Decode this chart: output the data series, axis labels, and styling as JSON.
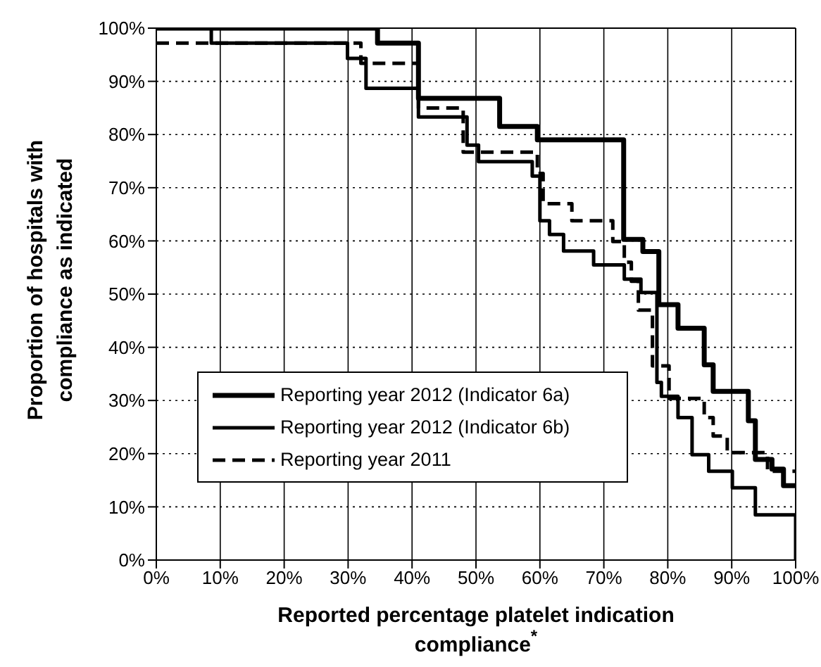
{
  "chart_data": {
    "type": "step",
    "xlabel": "Reported percentage platelet indication compliance$^{*}$",
    "ylabel": "Proportion of hospitals with compliance as indicated",
    "xlim": [
      0,
      100
    ],
    "ylim": [
      0,
      100
    ],
    "xticks": [
      {
        "value": 0,
        "label": "0%"
      },
      {
        "value": 10,
        "label": "10%"
      },
      {
        "value": 20,
        "label": "20%"
      },
      {
        "value": 30,
        "label": "30%"
      },
      {
        "value": 40,
        "label": "40%"
      },
      {
        "value": 50,
        "label": "50%"
      },
      {
        "value": 60,
        "label": "60%"
      },
      {
        "value": 70,
        "label": "70%"
      },
      {
        "value": 80,
        "label": "80%"
      },
      {
        "value": 90,
        "label": "90%"
      },
      {
        "value": 100,
        "label": "100%"
      }
    ],
    "yticks": [
      {
        "value": 0,
        "label": "0%"
      },
      {
        "value": 10,
        "label": "10%"
      },
      {
        "value": 20,
        "label": "20%"
      },
      {
        "value": 30,
        "label": "30%"
      },
      {
        "value": 40,
        "label": "40%"
      },
      {
        "value": 50,
        "label": "50%"
      },
      {
        "value": 60,
        "label": "60%"
      },
      {
        "value": 70,
        "label": "70%"
      },
      {
        "value": 80,
        "label": "80%"
      },
      {
        "value": 90,
        "label": "90%"
      },
      {
        "value": 100,
        "label": "100%"
      }
    ],
    "grid": true,
    "legend": "bottom left",
    "line_style": "solid",
    "marker": "none",
    "series": [
      {
        "name": "Reporting year 2012 (Indicator 6a)",
        "color": "#000000",
        "x": [
          0,
          34.6,
          41,
          53.7,
          59.6,
          73.1,
          76.1,
          78.6,
          81.6,
          85.7,
          87.1,
          92.6,
          93.7,
          96.3,
          98.1,
          100
        ],
        "values": [
          100,
          97.2,
          86.8,
          81.5,
          79,
          60.3,
          58,
          48,
          43.6,
          36.7,
          31.7,
          26.2,
          18.9,
          17.1,
          14,
          14
        ]
      },
      {
        "name": "Reporting year 2012 (Indicator 6b)",
        "color": "#000000",
        "x": [
          0,
          8.6,
          29.9,
          32.8,
          41,
          48.6,
          50.4,
          58.8,
          60,
          61.5,
          63.7,
          68.4,
          73.2,
          75.8,
          78.3,
          79,
          81.6,
          83.8,
          86.4,
          90.1,
          93.7,
          95.6,
          100,
          100
        ],
        "values": [
          100,
          97.2,
          94.3,
          88.7,
          83.3,
          78,
          74.9,
          72.2,
          63.8,
          61.2,
          58.1,
          55.5,
          52.8,
          50.3,
          33.4,
          30.8,
          26.8,
          19.8,
          16.7,
          13.6,
          8.5,
          8.5,
          8.5,
          0
        ]
      },
      {
        "name": "Reporting year 2011",
        "color": "#000000",
        "line_style": "dashed",
        "x": [
          0,
          32,
          41,
          48,
          59.6,
          60.5,
          65,
          71.4,
          73.2,
          74.3,
          75.4,
          77.6,
          80.2,
          85.7,
          87.1,
          89.3,
          95.6,
          100
        ],
        "values": [
          97.2,
          93.4,
          85,
          76.7,
          72.7,
          67,
          63.8,
          59.9,
          56,
          52.4,
          47,
          36.5,
          30.4,
          26.8,
          23.3,
          20.2,
          16.7,
          16.7
        ]
      }
    ]
  }
}
